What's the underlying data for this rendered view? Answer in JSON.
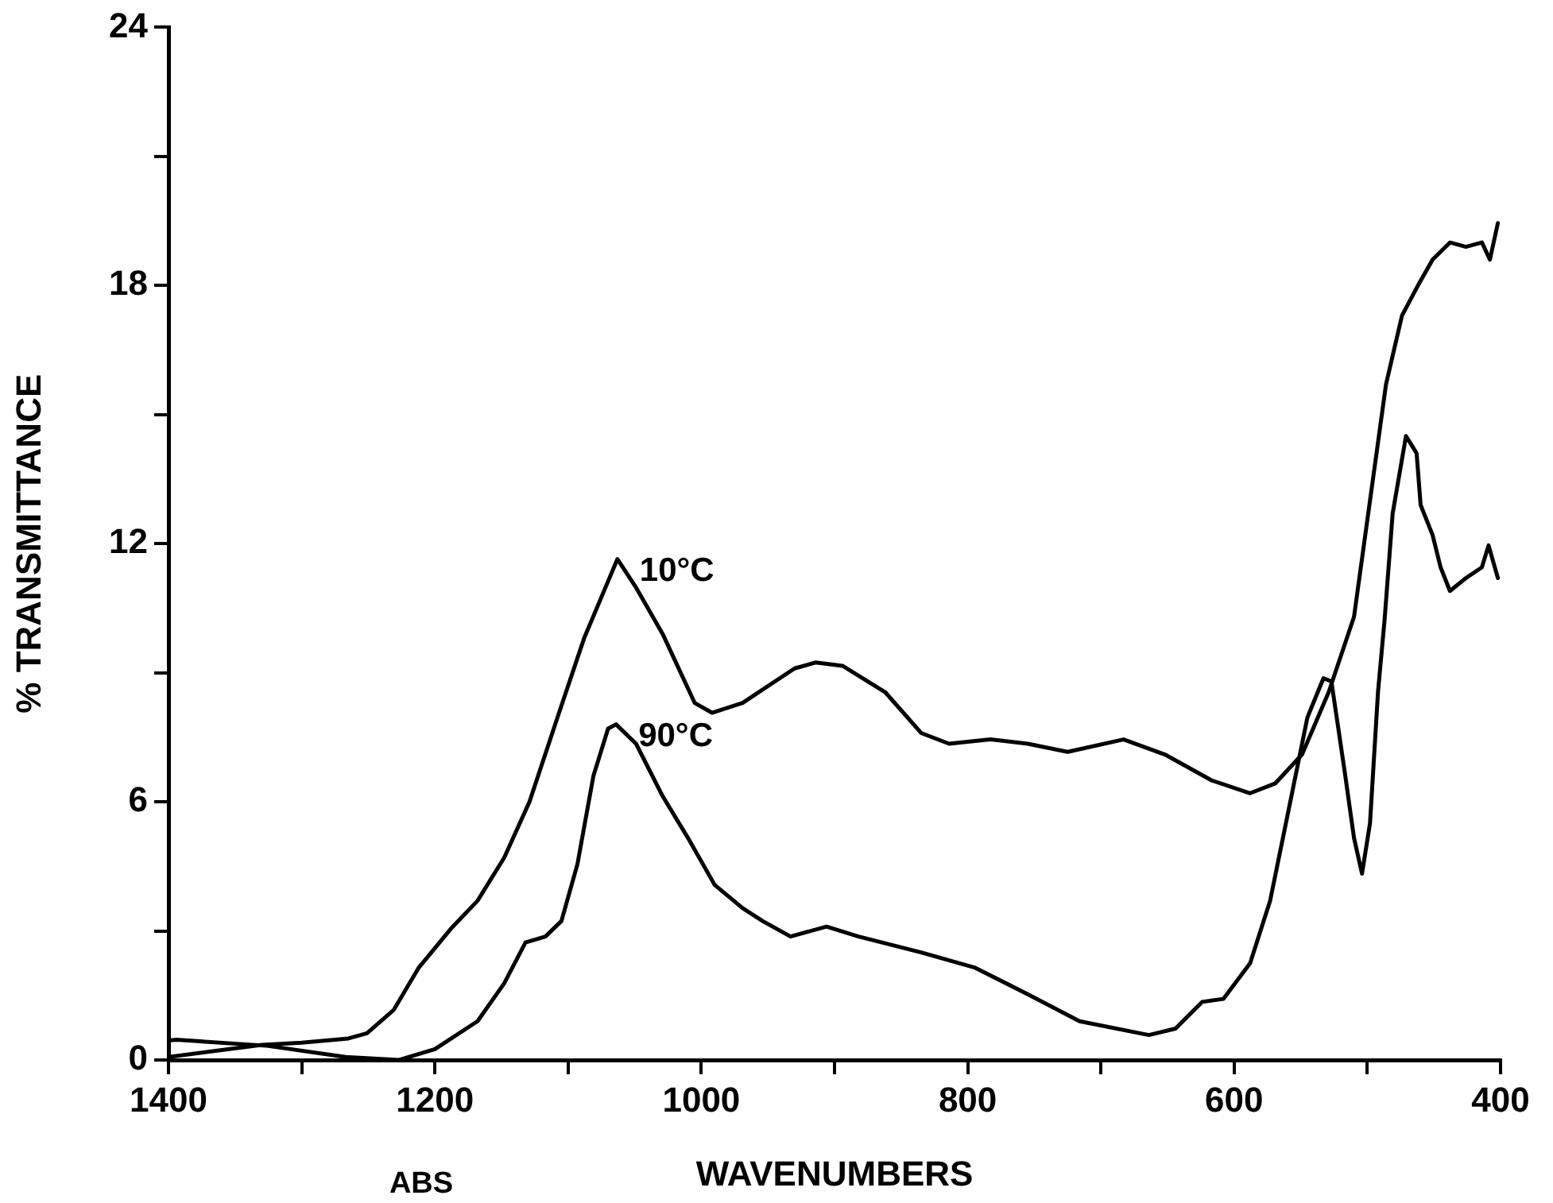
{
  "chart_data": {
    "type": "line",
    "xlabel": "WAVENUMBERS",
    "ylabel": "% TRANSMITTANCE",
    "annotations": [
      "ABS"
    ],
    "xlim": [
      1400,
      400
    ],
    "ylim": [
      0,
      24
    ],
    "xticks": [
      1400,
      {
        "value": 1300,
        "label": null
      },
      1200,
      {
        "value": 1100,
        "label": null
      },
      1000,
      {
        "value": 900,
        "label": null
      },
      800,
      {
        "value": 700,
        "label": null
      },
      600,
      {
        "value": 500,
        "label": null
      },
      400
    ],
    "yticks": [
      0,
      {
        "value": 3,
        "label": null
      },
      6,
      {
        "value": 9,
        "label": null
      },
      12,
      {
        "value": 15,
        "label": null
      },
      18,
      {
        "value": 21,
        "label": null
      },
      24
    ],
    "legend": false,
    "marker": "none",
    "line_style": "solid",
    "series": [
      {
        "name": "10°C",
        "color": "#000000",
        "x": [
          1400,
          1330,
          1300,
          1265,
          1251,
          1231,
          1212,
          1188,
          1168,
          1148,
          1129,
          1108,
          1088,
          1063,
          1049,
          1029,
          1005,
          992,
          969,
          930,
          914,
          894,
          862,
          835,
          814,
          783,
          755,
          725,
          683,
          652,
          617,
          588,
          569,
          549,
          529,
          510,
          486,
          474,
          462,
          451,
          438,
          426,
          414,
          408,
          402
        ],
        "values": [
          0.07,
          0.35,
          0.4,
          0.5,
          0.62,
          1.16,
          2.15,
          3.05,
          3.7,
          4.7,
          6.0,
          7.96,
          9.8,
          11.64,
          10.98,
          9.9,
          8.3,
          8.07,
          8.3,
          9.1,
          9.24,
          9.16,
          8.55,
          7.6,
          7.35,
          7.45,
          7.35,
          7.16,
          7.45,
          7.1,
          6.5,
          6.2,
          6.43,
          7.1,
          8.55,
          10.3,
          15.7,
          17.3,
          18.0,
          18.6,
          19.0,
          18.9,
          19.0,
          18.6,
          19.45
        ]
      },
      {
        "name": "90°C",
        "color": "#000000",
        "x": [
          1400,
          1394,
          1326,
          1267,
          1227,
          1200,
          1168,
          1148,
          1132,
          1117,
          1105,
          1093,
          1081,
          1070,
          1064,
          1049,
          1029,
          1010,
          990,
          969,
          954,
          933,
          906,
          882,
          835,
          795,
          755,
          716,
          664,
          644,
          624,
          608,
          588,
          573,
          557,
          545,
          533,
          527,
          517,
          510,
          504,
          498,
          492,
          487,
          481,
          471,
          463,
          460,
          451,
          445,
          438,
          426,
          414,
          409,
          402
        ],
        "values": [
          0.45,
          0.47,
          0.33,
          0.07,
          0.0,
          0.25,
          0.9,
          1.78,
          2.73,
          2.87,
          3.23,
          4.55,
          6.6,
          7.7,
          7.8,
          7.35,
          6.13,
          5.16,
          4.07,
          3.53,
          3.23,
          2.87,
          3.1,
          2.87,
          2.5,
          2.15,
          1.53,
          0.9,
          0.58,
          0.73,
          1.35,
          1.42,
          2.25,
          3.7,
          6.13,
          7.96,
          8.87,
          8.8,
          6.7,
          5.16,
          4.33,
          5.5,
          8.55,
          10.25,
          12.7,
          14.5,
          14.1,
          12.9,
          12.2,
          11.45,
          10.9,
          11.2,
          11.45,
          11.96,
          11.2
        ]
      }
    ]
  }
}
